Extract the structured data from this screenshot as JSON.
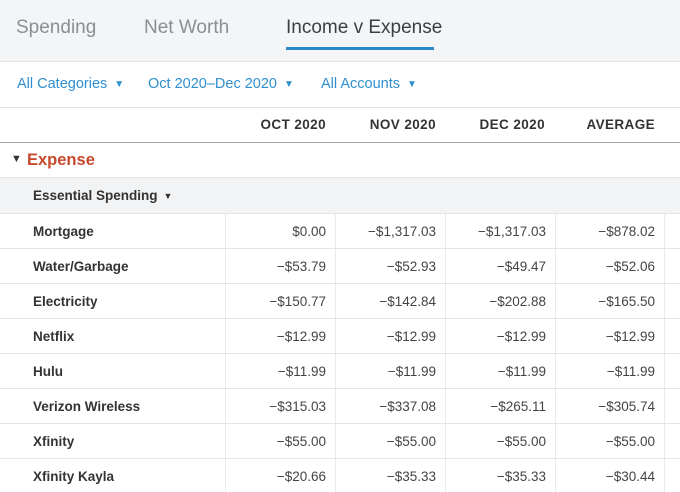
{
  "tabs": [
    {
      "label": "Spending"
    },
    {
      "label": "Net Worth"
    },
    {
      "label": "Income v Expense"
    }
  ],
  "active_tab_index": 2,
  "filters": {
    "categories": "All Categories",
    "date_range": "Oct 2020–Dec 2020",
    "accounts": "All Accounts",
    "caret_icon": "caret-down-icon"
  },
  "columns": [
    "OCT 2020",
    "NOV 2020",
    "DEC 2020",
    "AVERAGE"
  ],
  "section": {
    "title": "Expense",
    "expanded": true,
    "title_color": "#c8482c"
  },
  "group": {
    "title": "Essential Spending"
  },
  "rows": [
    {
      "label": "Mortgage",
      "values": [
        "$0.00",
        "−$1,317.03",
        "−$1,317.03",
        "−$878.02"
      ]
    },
    {
      "label": "Water/Garbage",
      "values": [
        "−$53.79",
        "−$52.93",
        "−$49.47",
        "−$52.06"
      ]
    },
    {
      "label": "Electricity",
      "values": [
        "−$150.77",
        "−$142.84",
        "−$202.88",
        "−$165.50"
      ]
    },
    {
      "label": "Netflix",
      "values": [
        "−$12.99",
        "−$12.99",
        "−$12.99",
        "−$12.99"
      ]
    },
    {
      "label": "Hulu",
      "values": [
        "−$11.99",
        "−$11.99",
        "−$11.99",
        "−$11.99"
      ]
    },
    {
      "label": "Verizon Wireless",
      "values": [
        "−$315.03",
        "−$337.08",
        "−$265.11",
        "−$305.74"
      ]
    },
    {
      "label": "Xfinity",
      "values": [
        "−$55.00",
        "−$55.00",
        "−$55.00",
        "−$55.00"
      ]
    },
    {
      "label": "Xfinity Kayla",
      "values": [
        "−$20.66",
        "−$35.33",
        "−$35.33",
        "−$30.44"
      ]
    }
  ],
  "accent_color": "#2a8bc7"
}
